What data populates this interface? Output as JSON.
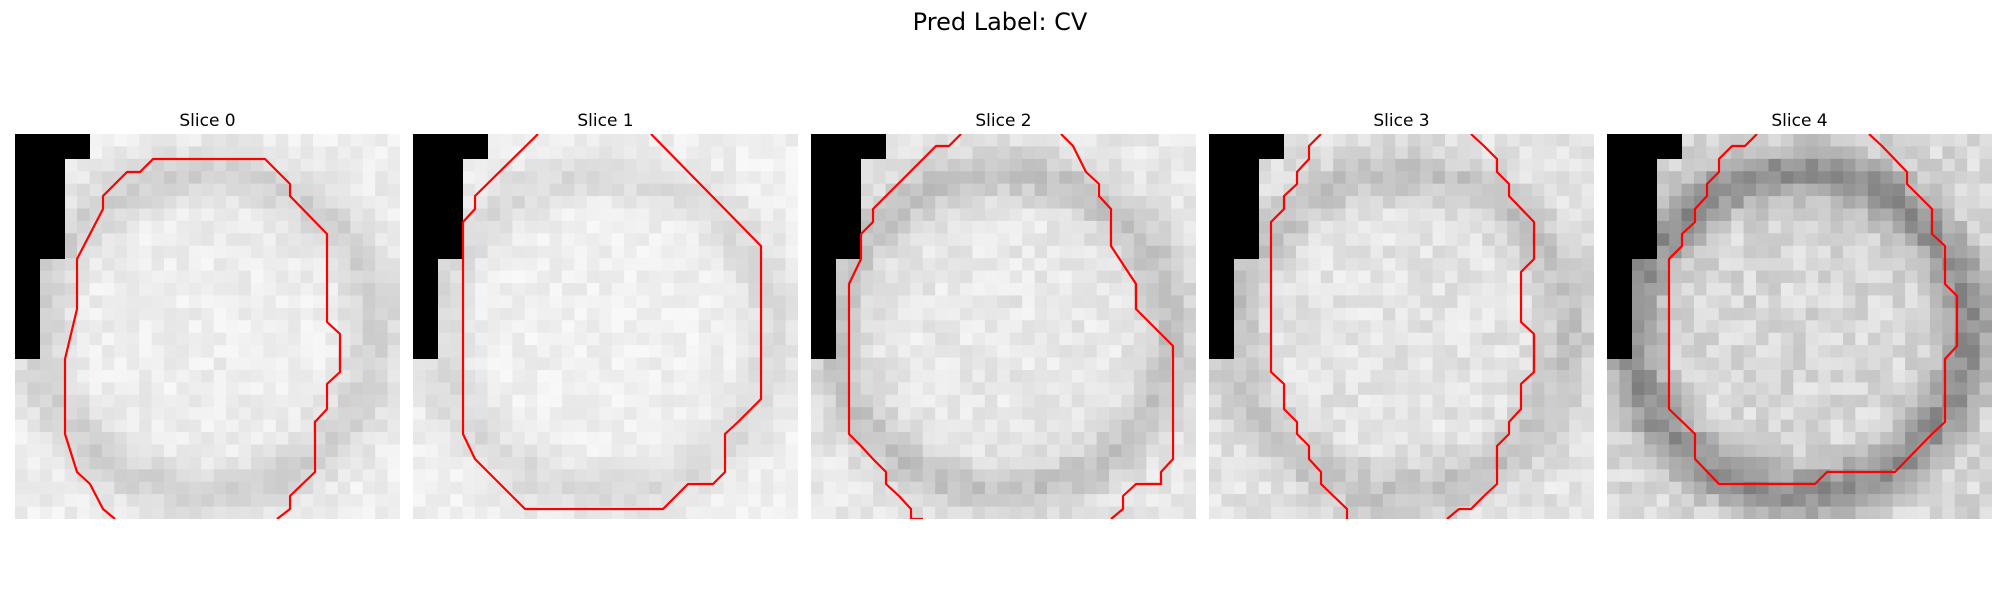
{
  "figure": {
    "title": "Pred Label: CV"
  },
  "panels": [
    {
      "title": "Slice 0",
      "base": 238,
      "noise": 10,
      "ring_strength": 30,
      "mask": [
        [
          0,
          0
        ],
        [
          75,
          0
        ],
        [
          75,
          25
        ],
        [
          50,
          25
        ],
        [
          50,
          125
        ],
        [
          25,
          125
        ],
        [
          25,
          225
        ],
        [
          0,
          225
        ]
      ],
      "contour": [
        [
          100,
          385
        ],
        [
          88,
          375
        ],
        [
          75,
          350
        ],
        [
          62,
          338
        ],
        [
          50,
          300
        ],
        [
          50,
          225
        ],
        [
          62,
          175
        ],
        [
          62,
          125
        ],
        [
          75,
          100
        ],
        [
          88,
          75
        ],
        [
          88,
          62
        ],
        [
          112,
          38
        ],
        [
          125,
          38
        ],
        [
          138,
          25
        ],
        [
          250,
          25
        ],
        [
          275,
          50
        ],
        [
          275,
          62
        ],
        [
          312,
          100
        ],
        [
          312,
          188
        ],
        [
          325,
          200
        ],
        [
          325,
          238
        ],
        [
          312,
          250
        ],
        [
          312,
          275
        ],
        [
          300,
          288
        ],
        [
          300,
          338
        ],
        [
          275,
          362
        ],
        [
          275,
          375
        ],
        [
          262,
          385
        ]
      ]
    },
    {
      "title": "Slice 1",
      "base": 240,
      "noise": 9,
      "ring_strength": 22,
      "mask": [
        [
          0,
          0
        ],
        [
          75,
          0
        ],
        [
          75,
          25
        ],
        [
          50,
          25
        ],
        [
          50,
          125
        ],
        [
          25,
          125
        ],
        [
          25,
          225
        ],
        [
          0,
          225
        ]
      ],
      "contour": [
        [
          125,
          0
        ],
        [
          62,
          62
        ],
        [
          62,
          75
        ],
        [
          50,
          88
        ],
        [
          50,
          300
        ],
        [
          62,
          325
        ],
        [
          112,
          375
        ],
        [
          250,
          375
        ],
        [
          275,
          350
        ],
        [
          300,
          350
        ],
        [
          312,
          338
        ],
        [
          312,
          300
        ],
        [
          325,
          288
        ],
        [
          348,
          265
        ],
        [
          348,
          112
        ],
        [
          238,
          0
        ]
      ]
    },
    {
      "title": "Slice 2",
      "base": 232,
      "noise": 12,
      "ring_strength": 38,
      "mask": [
        [
          0,
          0
        ],
        [
          75,
          0
        ],
        [
          75,
          25
        ],
        [
          50,
          25
        ],
        [
          50,
          125
        ],
        [
          25,
          125
        ],
        [
          25,
          225
        ],
        [
          0,
          225
        ]
      ],
      "contour": [
        [
          150,
          0
        ],
        [
          138,
          12
        ],
        [
          125,
          12
        ],
        [
          62,
          75
        ],
        [
          62,
          88
        ],
        [
          50,
          100
        ],
        [
          50,
          125
        ],
        [
          38,
          150
        ],
        [
          38,
          300
        ],
        [
          50,
          312
        ],
        [
          62,
          325
        ],
        [
          75,
          338
        ],
        [
          75,
          350
        ],
        [
          88,
          362
        ],
        [
          100,
          375
        ],
        [
          100,
          385
        ],
        [
          112,
          385
        ]
      ],
      "contour2": [
        [
          250,
          0
        ],
        [
          262,
          12
        ],
        [
          275,
          38
        ],
        [
          288,
          50
        ],
        [
          288,
          62
        ],
        [
          300,
          75
        ],
        [
          300,
          112
        ],
        [
          325,
          150
        ],
        [
          325,
          175
        ],
        [
          362,
          212
        ],
        [
          362,
          325
        ],
        [
          350,
          338
        ],
        [
          350,
          350
        ],
        [
          325,
          350
        ],
        [
          312,
          362
        ],
        [
          312,
          375
        ],
        [
          300,
          385
        ]
      ]
    },
    {
      "title": "Slice 3",
      "base": 228,
      "noise": 14,
      "ring_strength": 34,
      "mask": [
        [
          0,
          0
        ],
        [
          75,
          0
        ],
        [
          75,
          25
        ],
        [
          50,
          25
        ],
        [
          50,
          125
        ],
        [
          25,
          125
        ],
        [
          25,
          225
        ],
        [
          0,
          225
        ]
      ],
      "contour": [
        [
          112,
          0
        ],
        [
          100,
          12
        ],
        [
          100,
          25
        ],
        [
          88,
          38
        ],
        [
          88,
          50
        ],
        [
          75,
          62
        ],
        [
          75,
          75
        ],
        [
          62,
          88
        ],
        [
          62,
          238
        ],
        [
          75,
          250
        ],
        [
          75,
          275
        ],
        [
          88,
          288
        ],
        [
          88,
          300
        ],
        [
          100,
          312
        ],
        [
          100,
          325
        ],
        [
          112,
          338
        ],
        [
          112,
          350
        ],
        [
          138,
          375
        ],
        [
          138,
          385
        ]
      ],
      "contour2": [
        [
          262,
          0
        ],
        [
          275,
          12
        ],
        [
          288,
          25
        ],
        [
          288,
          38
        ],
        [
          300,
          50
        ],
        [
          300,
          62
        ],
        [
          325,
          88
        ],
        [
          325,
          125
        ],
        [
          312,
          138
        ],
        [
          312,
          188
        ],
        [
          325,
          200
        ],
        [
          325,
          238
        ],
        [
          312,
          250
        ],
        [
          312,
          275
        ],
        [
          300,
          288
        ],
        [
          300,
          300
        ],
        [
          288,
          312
        ],
        [
          288,
          350
        ],
        [
          275,
          362
        ],
        [
          262,
          375
        ],
        [
          250,
          375
        ],
        [
          238,
          385
        ]
      ]
    },
    {
      "title": "Slice 4",
      "base": 216,
      "noise": 18,
      "ring_strength": 75,
      "mask": [
        [
          0,
          0
        ],
        [
          75,
          0
        ],
        [
          75,
          25
        ],
        [
          50,
          25
        ],
        [
          50,
          125
        ],
        [
          25,
          125
        ],
        [
          25,
          225
        ],
        [
          0,
          225
        ]
      ],
      "contour": [
        [
          150,
          0
        ],
        [
          138,
          12
        ],
        [
          125,
          12
        ],
        [
          112,
          25
        ],
        [
          112,
          38
        ],
        [
          100,
          50
        ],
        [
          100,
          62
        ],
        [
          88,
          75
        ],
        [
          88,
          88
        ],
        [
          75,
          100
        ],
        [
          75,
          112
        ],
        [
          62,
          125
        ],
        [
          62,
          275
        ],
        [
          88,
          300
        ],
        [
          88,
          325
        ],
        [
          112,
          350
        ],
        [
          208,
          350
        ],
        [
          220,
          338
        ],
        [
          288,
          338
        ],
        [
          325,
          300
        ],
        [
          338,
          288
        ],
        [
          338,
          225
        ],
        [
          350,
          212
        ],
        [
          350,
          162
        ],
        [
          338,
          150
        ],
        [
          338,
          112
        ],
        [
          325,
          100
        ],
        [
          325,
          75
        ],
        [
          312,
          62
        ],
        [
          300,
          50
        ],
        [
          300,
          38
        ],
        [
          275,
          12
        ],
        [
          262,
          0
        ]
      ]
    }
  ]
}
